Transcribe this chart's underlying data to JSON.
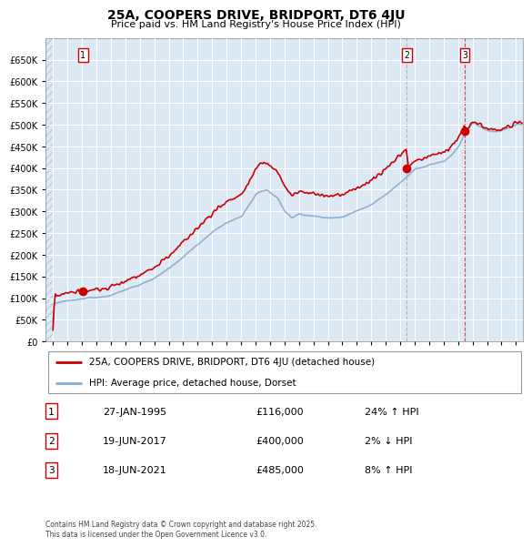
{
  "title": "25A, COOPERS DRIVE, BRIDPORT, DT6 4JU",
  "subtitle": "Price paid vs. HM Land Registry's House Price Index (HPI)",
  "legend_label_red": "25A, COOPERS DRIVE, BRIDPORT, DT6 4JU (detached house)",
  "legend_label_blue": "HPI: Average price, detached house, Dorset",
  "footer": "Contains HM Land Registry data © Crown copyright and database right 2025.\nThis data is licensed under the Open Government Licence v3.0.",
  "transactions": [
    {
      "label": "1",
      "date": "27-JAN-1995",
      "price": 116000,
      "hpi_pct": "24% ↑ HPI",
      "x": 1995.07
    },
    {
      "label": "2",
      "date": "19-JUN-2017",
      "price": 400000,
      "hpi_pct": "2% ↓ HPI",
      "x": 2017.46
    },
    {
      "label": "3",
      "date": "18-JUN-2021",
      "price": 485000,
      "hpi_pct": "8% ↑ HPI",
      "x": 2021.46
    }
  ],
  "vline_x2": 2017.46,
  "vline_x3": 2021.46,
  "ylim": [
    0,
    700000
  ],
  "yticks": [
    0,
    50000,
    100000,
    150000,
    200000,
    250000,
    300000,
    350000,
    400000,
    450000,
    500000,
    550000,
    600000,
    650000
  ],
  "xlim": [
    1992.5,
    2025.5
  ],
  "plot_bg": "#dce9f5",
  "grid_color": "#ffffff",
  "hatch_color": "#b8cfe0",
  "red_color": "#cc0000",
  "blue_color": "#88aacc",
  "title_fontsize": 10,
  "subtitle_fontsize": 8
}
